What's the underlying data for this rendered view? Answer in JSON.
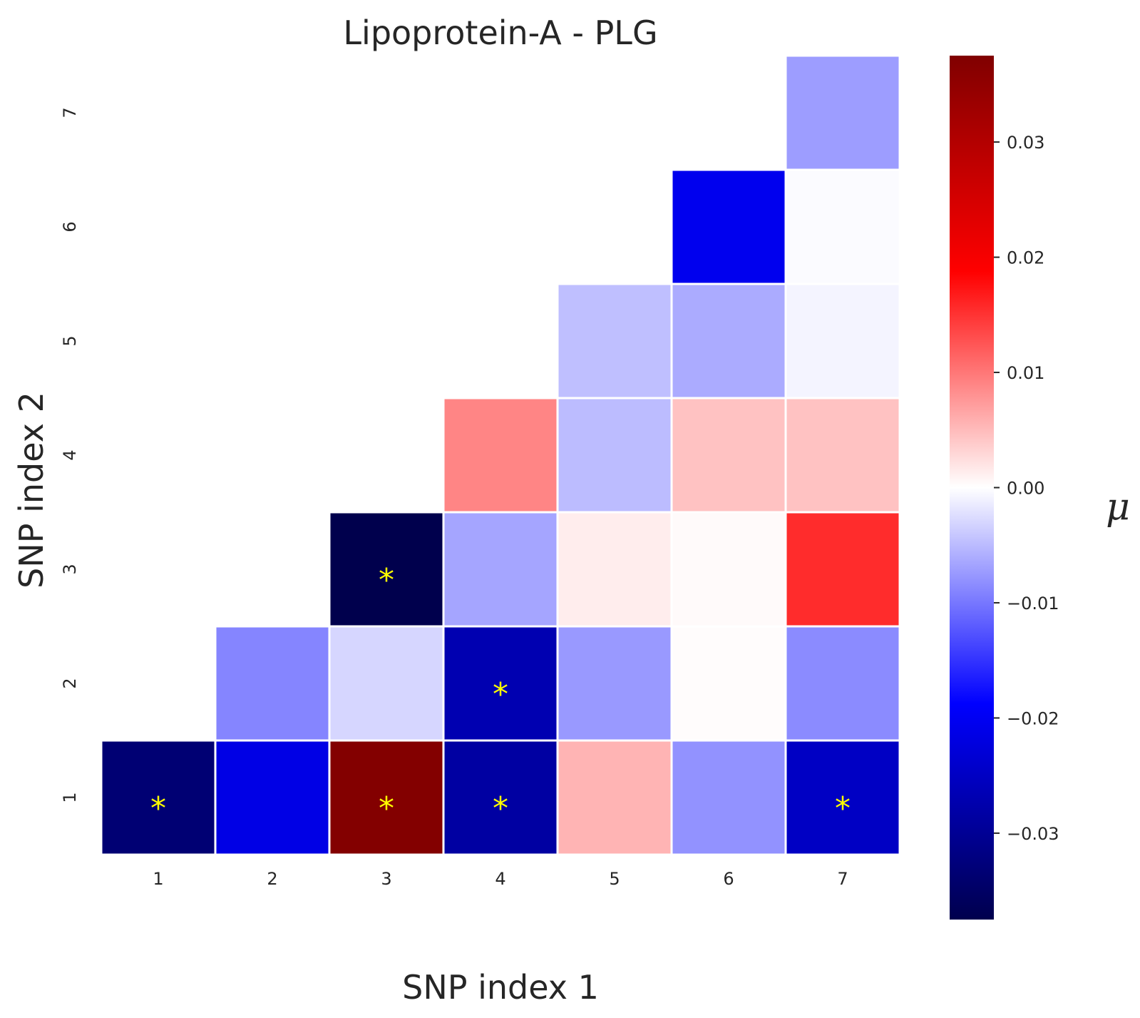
{
  "chart_data": {
    "type": "heatmap",
    "title": "Lipoprotein-A - PLG",
    "xlabel": "SNP index 1",
    "ylabel": "SNP index 2",
    "x_categories": [
      "1",
      "2",
      "3",
      "4",
      "5",
      "6",
      "7"
    ],
    "y_categories": [
      "1",
      "2",
      "3",
      "4",
      "5",
      "6",
      "7"
    ],
    "y_order": "bottom-to-top",
    "colormap": "seismic",
    "vmin": -0.0375,
    "vmax": 0.0375,
    "colorbar": {
      "label": "μ",
      "ticks": [
        0.03,
        0.02,
        0.01,
        0.0,
        -0.01,
        -0.02,
        -0.03
      ],
      "tick_labels": [
        "0.03",
        "0.02",
        "0.01",
        "0.00",
        "−0.01",
        "−0.02",
        "−0.03"
      ]
    },
    "significance_marker": "*",
    "cells": [
      {
        "x": "1",
        "y": "1",
        "value": -0.0335,
        "significant": true
      },
      {
        "x": "2",
        "y": "1",
        "value": -0.0215,
        "significant": false
      },
      {
        "x": "3",
        "y": "1",
        "value": 0.037,
        "significant": true
      },
      {
        "x": "4",
        "y": "1",
        "value": -0.0285,
        "significant": true
      },
      {
        "x": "5",
        "y": "1",
        "value": 0.0055,
        "significant": false
      },
      {
        "x": "6",
        "y": "1",
        "value": -0.008,
        "significant": false
      },
      {
        "x": "7",
        "y": "1",
        "value": -0.025,
        "significant": true
      },
      {
        "x": "2",
        "y": "2",
        "value": -0.009,
        "significant": false
      },
      {
        "x": "3",
        "y": "2",
        "value": -0.003,
        "significant": false
      },
      {
        "x": "4",
        "y": "2",
        "value": -0.027,
        "significant": true
      },
      {
        "x": "5",
        "y": "2",
        "value": -0.0075,
        "significant": false
      },
      {
        "x": "6",
        "y": "2",
        "value": 0.0002,
        "significant": false
      },
      {
        "x": "7",
        "y": "2",
        "value": -0.0085,
        "significant": false
      },
      {
        "x": "3",
        "y": "3",
        "value": -0.0375,
        "significant": true
      },
      {
        "x": "4",
        "y": "3",
        "value": -0.0066,
        "significant": false
      },
      {
        "x": "5",
        "y": "3",
        "value": 0.0013,
        "significant": false
      },
      {
        "x": "6",
        "y": "3",
        "value": 0.0004,
        "significant": false
      },
      {
        "x": "7",
        "y": "3",
        "value": 0.0155,
        "significant": false
      },
      {
        "x": "4",
        "y": "4",
        "value": 0.009,
        "significant": false
      },
      {
        "x": "5",
        "y": "4",
        "value": -0.0049,
        "significant": false
      },
      {
        "x": "6",
        "y": "4",
        "value": 0.0045,
        "significant": false
      },
      {
        "x": "7",
        "y": "4",
        "value": 0.0045,
        "significant": false
      },
      {
        "x": "5",
        "y": "5",
        "value": -0.0047,
        "significant": false
      },
      {
        "x": "6",
        "y": "5",
        "value": -0.0062,
        "significant": false
      },
      {
        "x": "7",
        "y": "5",
        "value": -0.0008,
        "significant": false
      },
      {
        "x": "6",
        "y": "6",
        "value": -0.0205,
        "significant": false
      },
      {
        "x": "7",
        "y": "6",
        "value": -0.0003,
        "significant": false
      },
      {
        "x": "7",
        "y": "7",
        "value": -0.0072,
        "significant": false
      }
    ]
  }
}
